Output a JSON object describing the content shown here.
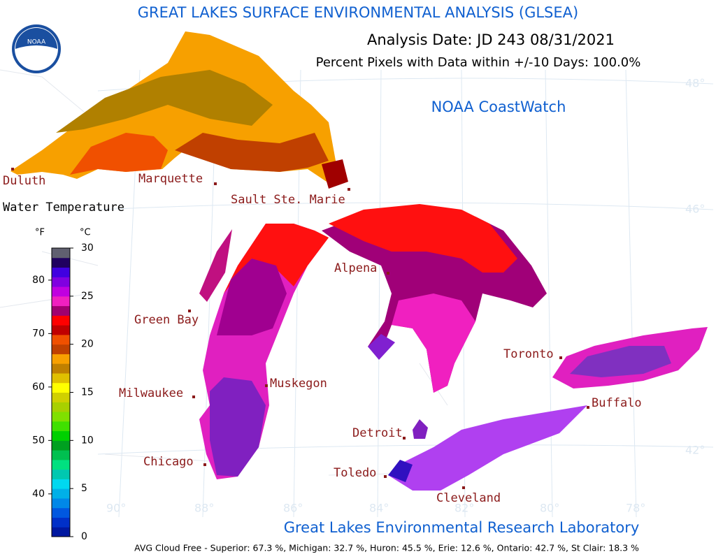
{
  "header": {
    "title": "GREAT LAKES SURFACE ENVIRONMENTAL ANALYSIS (GLSEA)",
    "analysis_date": "Analysis Date:  JD 243 08/31/2021",
    "percent_pixels": "Percent Pixels with Data within +/-10 Days: 100.0%",
    "credit": "NOAA CoastWatch",
    "logo": "NOAA"
  },
  "legend": {
    "title": "Water Temperature",
    "f_unit": "°F",
    "c_unit": "°C",
    "f_ticks": [
      40,
      50,
      60,
      70,
      80
    ],
    "c_ticks": [
      0,
      5,
      10,
      15,
      20,
      25,
      30
    ],
    "colors": [
      "#0018a0",
      "#0030c8",
      "#0058e0",
      "#0088e8",
      "#00b0e8",
      "#00d8f0",
      "#00c8b0",
      "#00e080",
      "#00c050",
      "#00a020",
      "#00d000",
      "#40e000",
      "#80e000",
      "#a8d000",
      "#d0d000",
      "#ffff00",
      "#e0c000",
      "#c08000",
      "#f8a000",
      "#c04000",
      "#f05000",
      "#c00000",
      "#ff0000",
      "#a00070",
      "#f020c0",
      "#c000e0",
      "#8000e0",
      "#4000e0",
      "#200060",
      "#606070"
    ]
  },
  "grid": {
    "lat_labels": [
      "48°",
      "46°",
      "42°"
    ],
    "lon_labels": [
      "90°",
      "88°",
      "86°",
      "84°",
      "82°",
      "80°",
      "78°"
    ]
  },
  "cities": [
    "Duluth",
    "Marquette",
    "Sault Ste. Marie",
    "Green Bay",
    "Alpena",
    "Milwaukee",
    "Muskegon",
    "Toronto",
    "Buffalo",
    "Detroit",
    "Chicago",
    "Toledo",
    "Cleveland"
  ],
  "footer": {
    "lab": "Great Lakes Environmental Research Laboratory",
    "cloud_free": "AVG Cloud Free - Superior:  67.3 %, Michigan:  32.7 %, Huron:  45.5 %, Erie: 12.6 %, Ontario: 42.7 %, St Clair: 18.3 %"
  }
}
